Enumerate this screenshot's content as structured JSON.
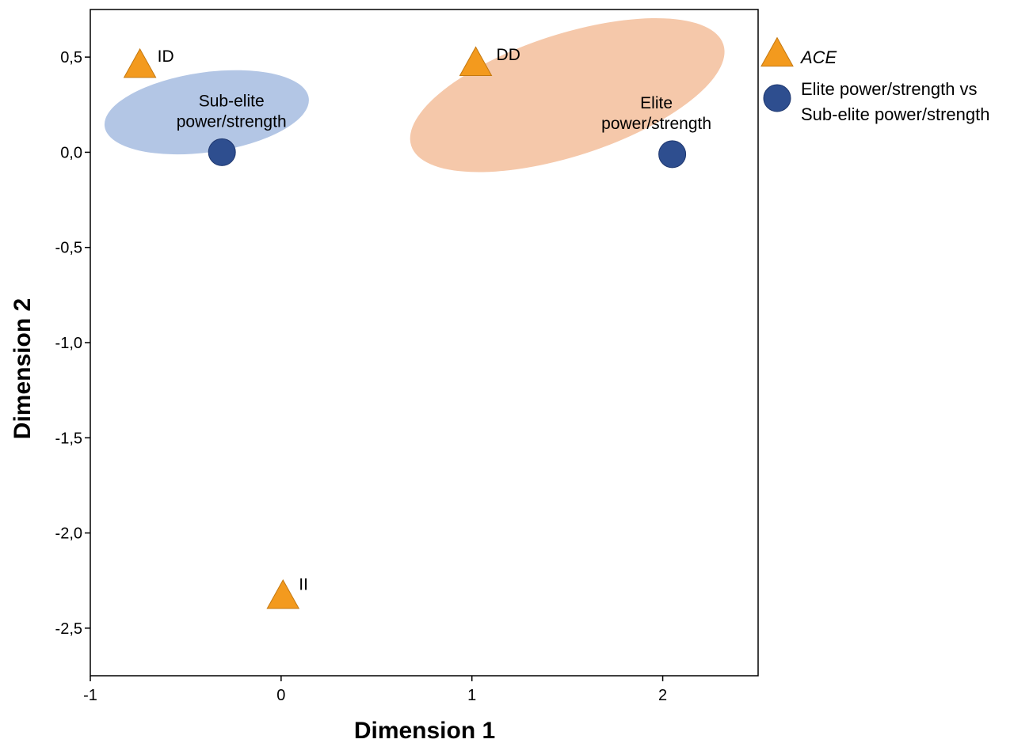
{
  "chart_data": {
    "type": "scatter",
    "xlabel": "Dimension 1",
    "ylabel": "Dimension 2",
    "xlim": [
      -1,
      2.5
    ],
    "ylim": [
      -2.75,
      0.75
    ],
    "xticks": [
      -1,
      0,
      1,
      2
    ],
    "xtick_labels": [
      "-1",
      "0",
      "1",
      "2"
    ],
    "yticks": [
      0.5,
      0.0,
      -0.5,
      -1.0,
      -1.5,
      -2.0,
      -2.5
    ],
    "ytick_labels": [
      "0,5",
      "0,0",
      "-0,5",
      "-1,0",
      "-1,5",
      "-2,0",
      "-2,5"
    ],
    "grid": false,
    "legend_position": "right",
    "series": [
      {
        "name": "ACE",
        "marker": "triangle",
        "color": "#F39A1E",
        "points": [
          {
            "label": "ID",
            "x": -0.74,
            "y": 0.45
          },
          {
            "label": "DD",
            "x": 1.02,
            "y": 0.46
          },
          {
            "label": "II",
            "x": 0.01,
            "y": -2.34
          }
        ]
      },
      {
        "name": "Elite power/strength vs Sub-elite power/strength",
        "marker": "circle",
        "color": "#2E4E8F",
        "points": [
          {
            "label": "Sub-elite power/strength",
            "x": -0.31,
            "y": 0.0
          },
          {
            "label": "Elite power/strength",
            "x": 2.05,
            "y": -0.01
          }
        ]
      }
    ],
    "clusters": [
      {
        "color": "#B3C6E5",
        "cx": -0.39,
        "cy": 0.21,
        "rx": 0.54,
        "ry": 0.21
      },
      {
        "color": "#F5C8AA",
        "cx": 1.5,
        "cy": 0.3,
        "rx": 0.86,
        "ry": 0.32
      }
    ],
    "legend": {
      "entries": [
        {
          "marker": "triangle",
          "lines": [
            "ACE"
          ],
          "italic": true
        },
        {
          "marker": "circle",
          "lines": [
            "Elite power/strength vs",
            "Sub-elite power/strength"
          ],
          "italic": false
        }
      ]
    },
    "cluster_labels": [
      {
        "lines": [
          "Sub-elite",
          "power/strength"
        ]
      },
      {
        "lines": [
          "Elite",
          "power/strength"
        ]
      }
    ]
  }
}
